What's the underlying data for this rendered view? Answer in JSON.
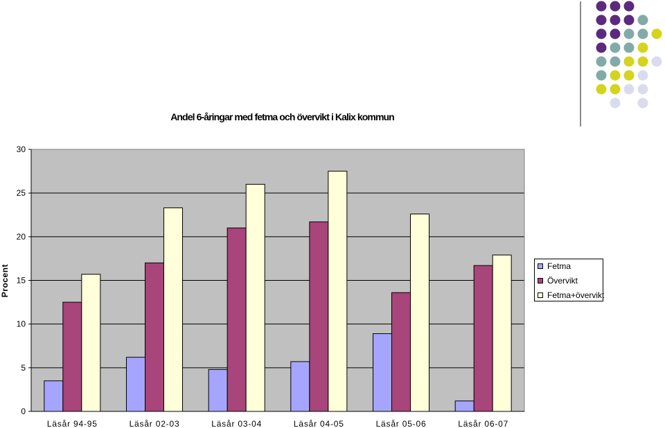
{
  "chart_data": {
    "type": "bar",
    "title": "Andel 6-åringar med fetma och övervikt i Kalix kommun",
    "xlabel": "",
    "ylabel": "Procent",
    "ylim": [
      0,
      30
    ],
    "yticks": [
      0,
      5,
      10,
      15,
      20,
      25,
      30
    ],
    "grid": true,
    "legend_position": "right",
    "plot_background": "#c0c0c0",
    "categories": [
      "Läsår 94-95",
      "Läsår 02-03",
      "Läsår 03-04",
      "Läsår 04-05",
      "Läsår 05-06",
      "Läsår 06-07"
    ],
    "series": [
      {
        "name": "Fetma",
        "color": "#a5a5ff",
        "values": [
          3.5,
          6.2,
          4.8,
          5.7,
          8.9,
          1.2
        ]
      },
      {
        "name": "Övervikt",
        "color": "#a8457a",
        "values": [
          12.5,
          17.0,
          21.0,
          21.7,
          13.6,
          16.7
        ]
      },
      {
        "name": "Fetma+övervikt",
        "color": "#ffffd9",
        "values": [
          15.7,
          23.3,
          26.0,
          27.5,
          22.6,
          17.9
        ]
      }
    ]
  },
  "decoration": {
    "dot_colors": {
      "purple": "#5b2a7e",
      "teal": "#82aaa8",
      "yellow": "#d4d41e",
      "lavender": "#dadcee"
    },
    "line_color": "#8a8a8a"
  }
}
